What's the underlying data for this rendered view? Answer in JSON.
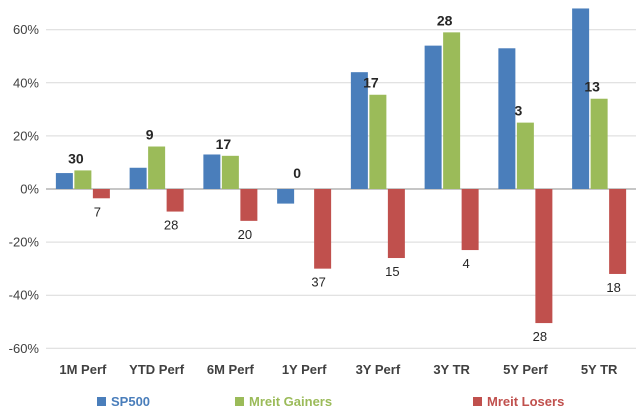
{
  "chart_data": {
    "type": "bar",
    "title": "",
    "xlabel": "",
    "ylabel": "",
    "ylim": [
      -60,
      70
    ],
    "yticks": [
      -60,
      -40,
      -20,
      0,
      20,
      40,
      60
    ],
    "ytick_labels": [
      "-60%",
      "-40%",
      "-20%",
      "0%",
      "20%",
      "40%",
      "60%"
    ],
    "grid": true,
    "legend_position": "bottom",
    "categories": [
      "1M Perf",
      "YTD Perf",
      "6M Perf",
      "1Y Perf",
      "3Y Perf",
      "3Y TR",
      "5Y Perf",
      "5Y TR"
    ],
    "series": [
      {
        "name": "SP500",
        "color": "#4A7EBB",
        "values": [
          6,
          8,
          13,
          -5.5,
          44,
          54,
          53,
          68
        ]
      },
      {
        "name": "Mreit Gainers",
        "color": "#9BBB59",
        "values": [
          7,
          16,
          12.5,
          0,
          35.5,
          59,
          25,
          34
        ],
        "data_labels": [
          "30",
          "9",
          "17",
          "0",
          "17",
          "28",
          "3",
          "13"
        ]
      },
      {
        "name": "Mreit Losers",
        "color": "#C0504D",
        "values": [
          -3.5,
          -8.5,
          -12,
          -30,
          -26,
          -23,
          -50.5,
          -32
        ],
        "data_labels": [
          "7",
          "28",
          "20",
          "37",
          "15",
          "4",
          "28",
          "18"
        ]
      }
    ]
  }
}
